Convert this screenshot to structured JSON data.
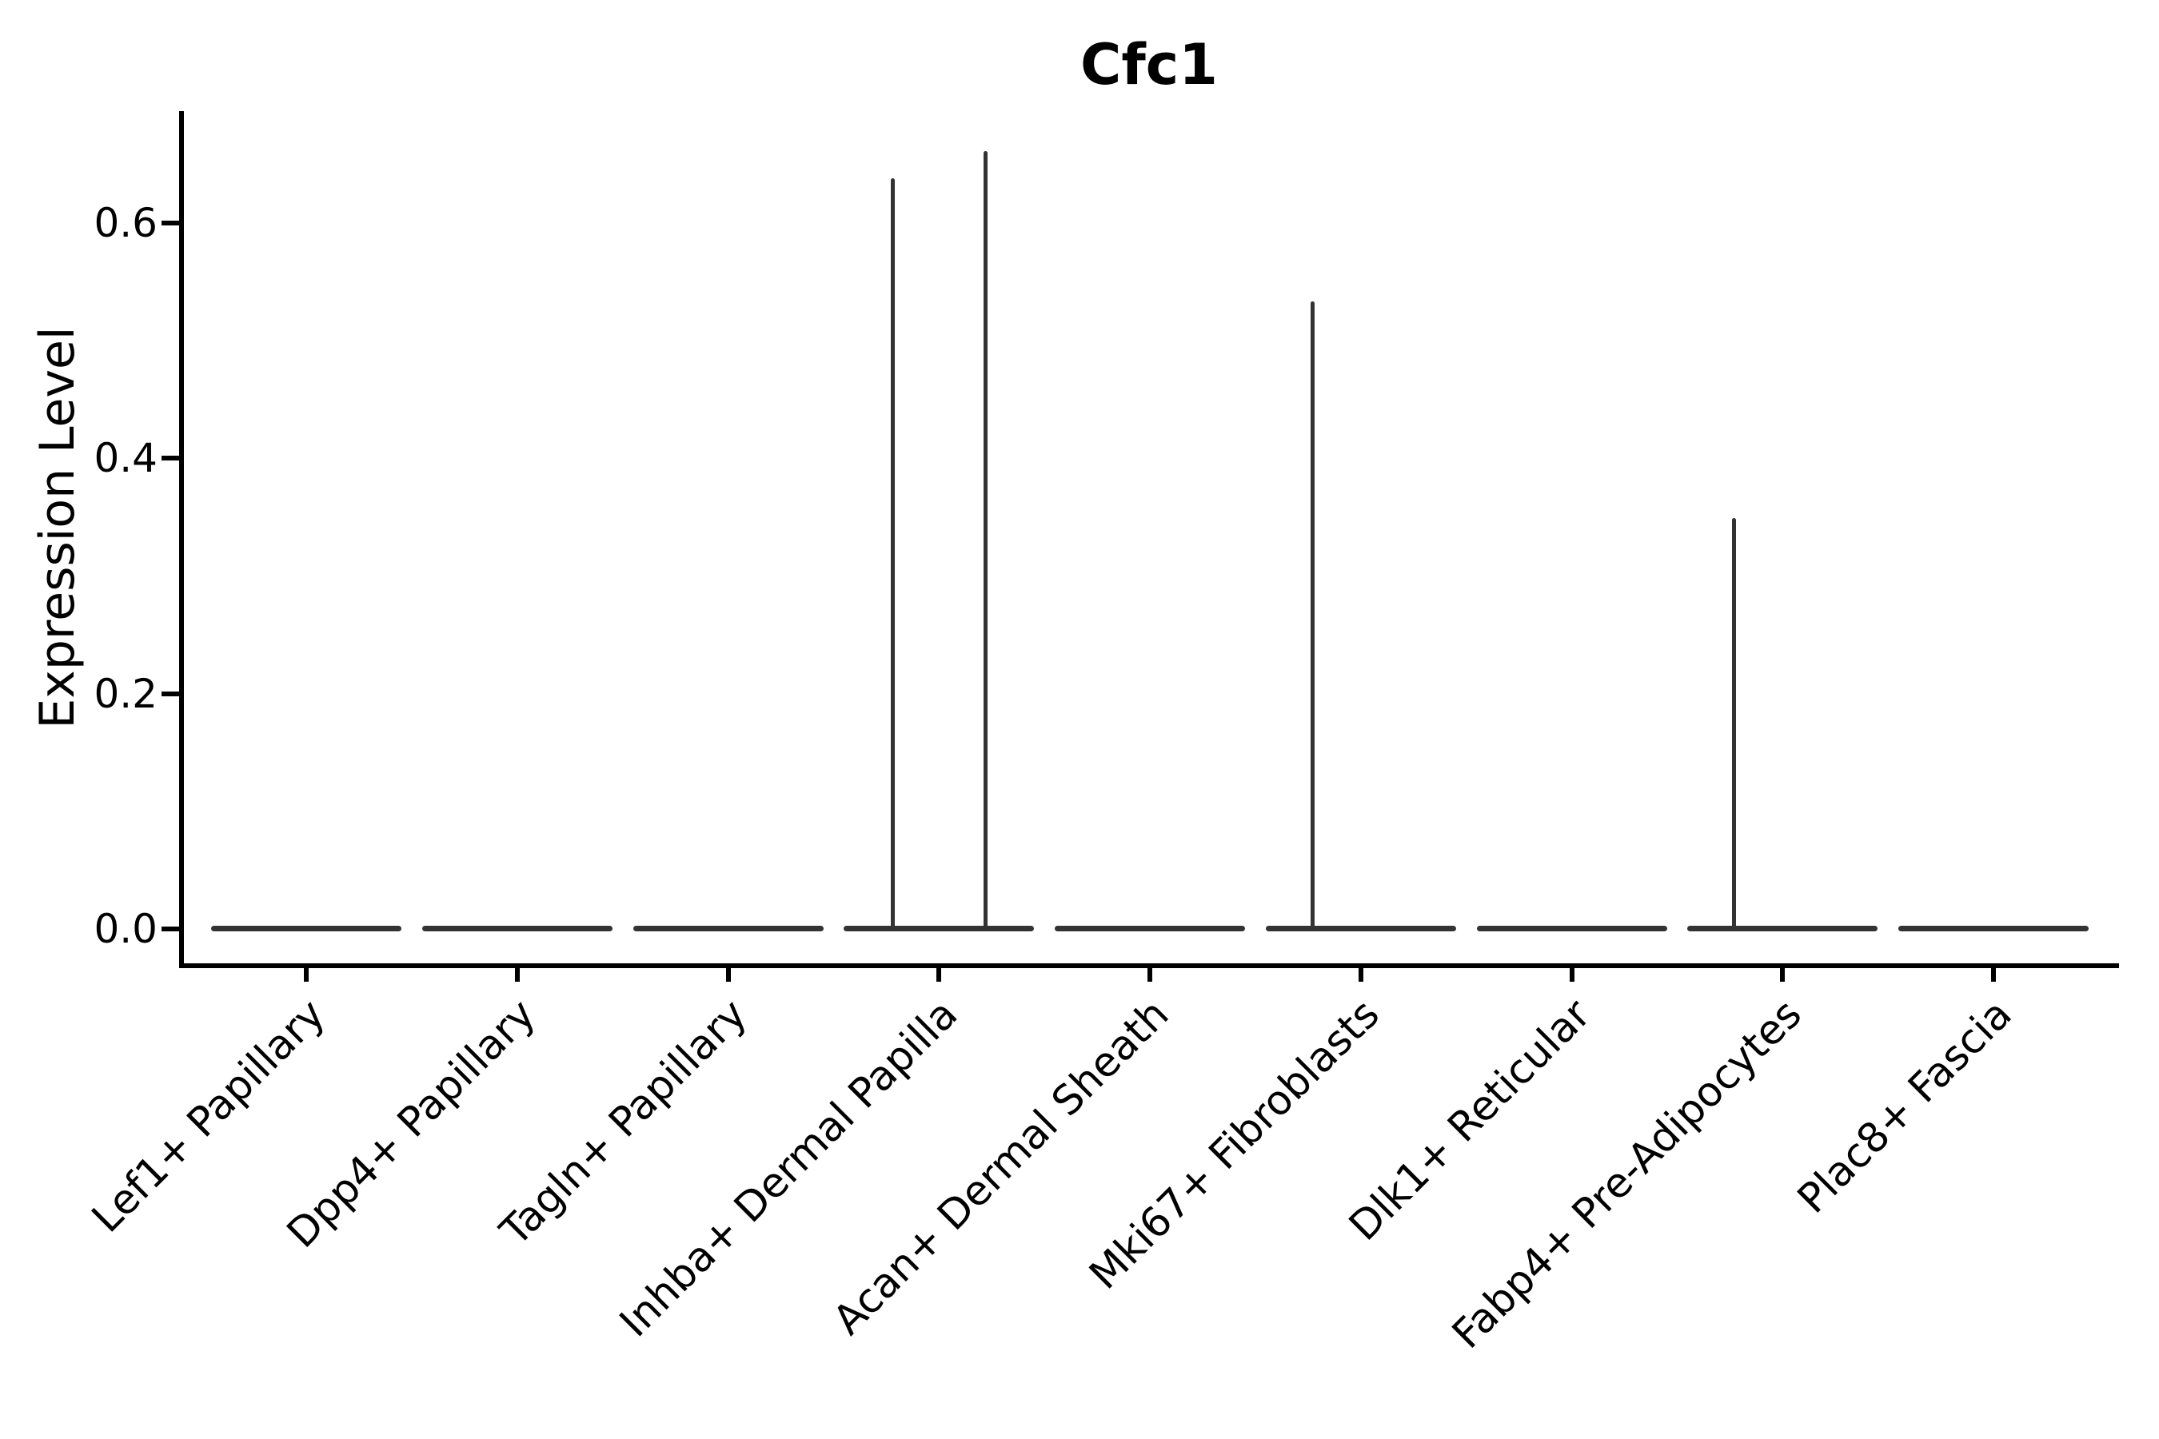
{
  "title": "Cfc1",
  "y_axis": {
    "label": "Expression Level",
    "tick_labels": [
      "0.0",
      "0.2",
      "0.4",
      "0.6"
    ]
  },
  "x_axis": {
    "tick_labels": [
      "Lef1+ Papillary",
      "Dpp4+ Papillary",
      "Tagln+ Papillary",
      "Inhba+ Dermal Papilla",
      "Acan+ Dermal Sheath",
      "Mki67+ Fibroblasts",
      "Dlk1+ Reticular",
      "Fabp4+ Pre-Adipocytes",
      "Plac8+ Fascia"
    ]
  },
  "colors": {
    "background": "#ffffff",
    "axis": "#000000",
    "text": "#000000",
    "violin_stroke": "#333333"
  },
  "chart_data": {
    "type": "violin",
    "title": "Cfc1",
    "xlabel": "",
    "ylabel": "Expression Level",
    "categories": [
      "Lef1+ Papillary",
      "Dpp4+ Papillary",
      "Tagln+ Papillary",
      "Inhba+ Dermal Papilla",
      "Acan+ Dermal Sheath",
      "Mki67+ Fibroblasts",
      "Dlk1+ Reticular",
      "Fabp4+ Pre-Adipocytes",
      "Plac8+ Fascia"
    ],
    "yticks": [
      0.0,
      0.2,
      0.4,
      0.6
    ],
    "ylim": [
      -0.031,
      0.695
    ],
    "grid": false,
    "legend": null,
    "violin_width_units": 0.9,
    "violins": [
      {
        "category": "Lef1+ Papillary",
        "flat_at": 0.0,
        "spikes": []
      },
      {
        "category": "Dpp4+ Papillary",
        "flat_at": 0.0,
        "spikes": []
      },
      {
        "category": "Tagln+ Papillary",
        "flat_at": 0.0,
        "spikes": []
      },
      {
        "category": "Inhba+ Dermal Papilla",
        "flat_at": 0.0,
        "spikes": [
          {
            "offset_units": -0.22,
            "value": 0.638
          },
          {
            "offset_units": 0.22,
            "value": 0.661
          }
        ]
      },
      {
        "category": "Acan+ Dermal Sheath",
        "flat_at": 0.0,
        "spikes": []
      },
      {
        "category": "Mki67+ Fibroblasts",
        "flat_at": 0.0,
        "spikes": [
          {
            "offset_units": -0.23,
            "value": 0.533
          }
        ]
      },
      {
        "category": "Dlk1+ Reticular",
        "flat_at": 0.0,
        "spikes": []
      },
      {
        "category": "Fabp4+ Pre-Adipocytes",
        "flat_at": 0.0,
        "spikes": [
          {
            "offset_units": -0.23,
            "value": 0.349
          }
        ]
      },
      {
        "category": "Plac8+ Fascia",
        "flat_at": 0.0,
        "spikes": []
      }
    ]
  }
}
